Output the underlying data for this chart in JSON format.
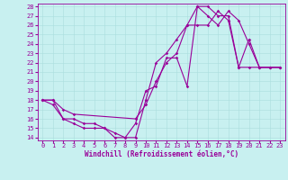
{
  "xlabel": "Windchill (Refroidissement éolien,°C)",
  "bg_color": "#c8f0f0",
  "line_color": "#990099",
  "xlim": [
    -0.5,
    23.5
  ],
  "ylim": [
    13.7,
    28.3
  ],
  "yticks": [
    14,
    15,
    16,
    17,
    18,
    19,
    20,
    21,
    22,
    23,
    24,
    25,
    26,
    27,
    28
  ],
  "xticks": [
    0,
    1,
    2,
    3,
    4,
    5,
    6,
    7,
    8,
    9,
    10,
    11,
    12,
    13,
    14,
    15,
    16,
    17,
    18,
    19,
    20,
    21,
    22,
    23
  ],
  "line1_x": [
    0,
    1,
    2,
    3,
    4,
    5,
    6,
    7,
    8,
    9,
    10,
    11,
    12,
    13,
    14,
    15,
    16,
    17,
    18,
    19,
    20,
    21,
    22,
    23
  ],
  "line1_y": [
    18,
    17.5,
    16,
    16,
    15.5,
    15.5,
    15,
    14,
    14,
    15.5,
    19,
    19.5,
    22.5,
    22.5,
    19.5,
    28,
    27,
    26,
    27.5,
    26.5,
    24,
    21.5,
    21.5,
    21.5
  ],
  "line2_x": [
    0,
    1,
    2,
    3,
    4,
    5,
    6,
    7,
    8,
    9,
    10,
    11,
    12,
    13,
    14,
    15,
    16,
    17,
    18,
    19,
    20,
    21,
    22,
    23
  ],
  "line2_y": [
    18,
    18,
    16,
    15.5,
    15,
    15,
    15,
    14.5,
    14,
    14,
    18,
    22,
    23,
    24.5,
    26,
    26,
    26,
    27.5,
    26.5,
    21.5,
    21.5,
    21.5,
    21.5,
    21.5
  ],
  "line3_x": [
    0,
    1,
    2,
    3,
    9,
    10,
    11,
    12,
    13,
    14,
    15,
    16,
    17,
    18,
    19,
    20,
    21,
    22,
    23
  ],
  "line3_y": [
    18,
    18,
    17,
    16.5,
    16,
    17.5,
    20,
    22,
    23,
    26,
    28,
    28,
    27,
    27,
    21.5,
    24.5,
    21.5,
    21.5,
    21.5
  ],
  "gridcolor": "#aadddd",
  "marker": "D",
  "markersize": 1.8,
  "linewidth": 0.8,
  "xlabel_fontsize": 5.5,
  "tick_fontsize": 5.0
}
